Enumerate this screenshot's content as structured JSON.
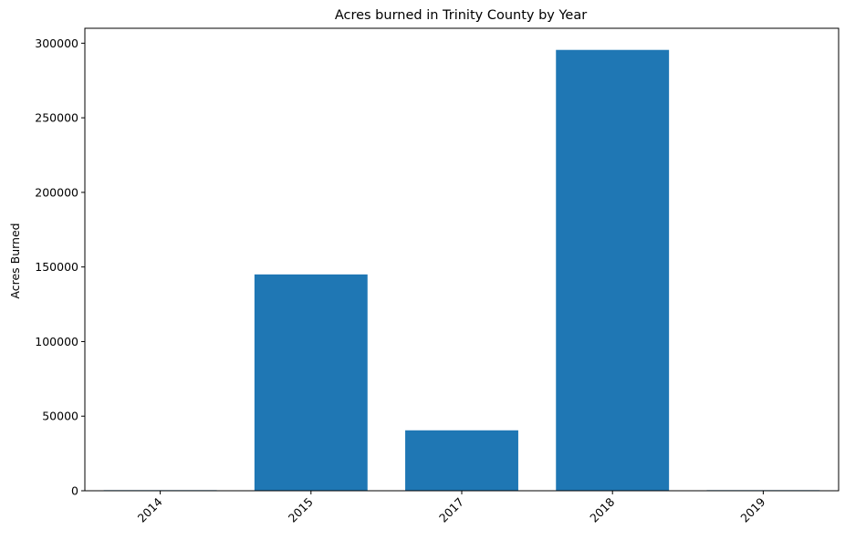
{
  "chart_data": {
    "type": "bar",
    "title": "Acres burned in Trinity County by Year",
    "xlabel": "",
    "ylabel": "Acres Burned",
    "categories": [
      "2014",
      "2015",
      "2017",
      "2018",
      "2019"
    ],
    "values": [
      400,
      145000,
      40500,
      295500,
      400
    ],
    "ylim": [
      0,
      310000
    ],
    "yticks": [
      0,
      50000,
      100000,
      150000,
      200000,
      250000,
      300000
    ],
    "ytick_labels": [
      "0",
      "50000",
      "100000",
      "150000",
      "200000",
      "250000",
      "300000"
    ],
    "grid": false,
    "legend": "none",
    "bar_color": "#1f77b4"
  }
}
